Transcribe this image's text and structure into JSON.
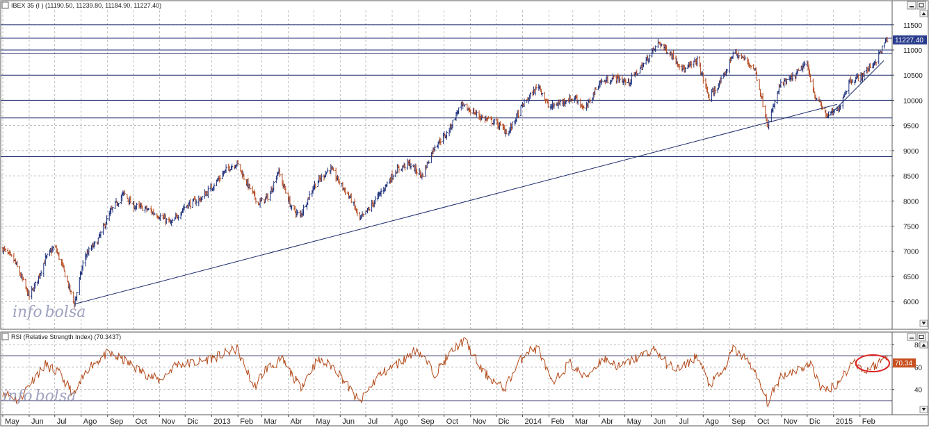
{
  "price_panel": {
    "title": "IBEX 35 (I ) (11190.50, 11239.80, 11184.90, 11227.40)",
    "last_label": "11227.40",
    "colors": {
      "up": "#1c2f7a",
      "down": "#b5491f",
      "line": "#1a2a6c",
      "grid": "#a0a0a0",
      "last_bg": "#2a3c8c"
    }
  },
  "rsi_panel": {
    "title": "RSI (Relative Strength Index) (70.3437)",
    "last_label": "70.34",
    "colors": {
      "line": "#b34a1a",
      "last_bg": "#c85020",
      "circle": "#dd2222"
    }
  },
  "watermark": {
    "part1": "info",
    "part2": "bolsa"
  },
  "chart_data": [
    {
      "type": "ohlc",
      "title": "IBEX 35 (I ) (11190.50, 11239.80, 11184.90, 11227.40)",
      "y_ticks": [
        6000,
        6500,
        7000,
        7500,
        8000,
        8500,
        9000,
        9500,
        10000,
        10500,
        11000,
        11500
      ],
      "y_range": [
        5450,
        11980
      ],
      "x_tick_labels": [
        "May",
        "Jun",
        "Jul",
        "Ago",
        "Sep",
        "Oct",
        "Nov",
        "Dic",
        "2013",
        "Feb",
        "Mar",
        "Abr",
        "May",
        "Jun",
        "Jul",
        "Ago",
        "Sep",
        "Oct",
        "Nov",
        "Dic",
        "2014",
        "Feb",
        "Mar",
        "Abr",
        "May",
        "Jun",
        "Jul",
        "Ago",
        "Sep",
        "Oct",
        "Nov",
        "Dic",
        "2015",
        "Feb"
      ],
      "x_range": [
        "2012-05-01",
        "2015-03-05"
      ],
      "last": {
        "open": 11190.5,
        "high": 11239.8,
        "low": 11184.9,
        "close": 11227.4
      },
      "horizontal_levels": [
        11500,
        11235,
        11000,
        10930,
        10500,
        10000,
        9650,
        8880
      ],
      "trendlines": [
        {
          "from": [
            "2012-07-24",
            5950
          ],
          "to": [
            "2015-01-05",
            9920
          ]
        },
        {
          "from": [
            "2014-12-24",
            9650
          ],
          "to": [
            "2015-03-01",
            10790
          ]
        }
      ],
      "closes": [
        [
          "2012-05-01",
          7050
        ],
        [
          "2012-05-15",
          6800
        ],
        [
          "2012-06-01",
          6100
        ],
        [
          "2012-06-10",
          6400
        ],
        [
          "2012-06-20",
          6850
        ],
        [
          "2012-07-01",
          7100
        ],
        [
          "2012-07-10",
          6700
        ],
        [
          "2012-07-24",
          5950
        ],
        [
          "2012-08-05",
          6900
        ],
        [
          "2012-08-20",
          7200
        ],
        [
          "2012-09-05",
          7800
        ],
        [
          "2012-09-20",
          8150
        ],
        [
          "2012-10-01",
          7900
        ],
        [
          "2012-10-15",
          7850
        ],
        [
          "2012-11-01",
          7700
        ],
        [
          "2012-11-15",
          7550
        ],
        [
          "2012-12-01",
          7900
        ],
        [
          "2012-12-20",
          8050
        ],
        [
          "2013-01-05",
          8350
        ],
        [
          "2013-01-20",
          8650
        ],
        [
          "2013-01-31",
          8750
        ],
        [
          "2013-02-10",
          8400
        ],
        [
          "2013-02-25",
          7950
        ],
        [
          "2013-03-10",
          8100
        ],
        [
          "2013-03-20",
          8600
        ],
        [
          "2013-04-05",
          7850
        ],
        [
          "2013-04-15",
          7700
        ],
        [
          "2013-05-01",
          8300
        ],
        [
          "2013-05-20",
          8650
        ],
        [
          "2013-06-01",
          8350
        ],
        [
          "2013-06-15",
          8000
        ],
        [
          "2013-06-24",
          7620
        ],
        [
          "2013-07-05",
          7850
        ],
        [
          "2013-07-20",
          8200
        ],
        [
          "2013-08-05",
          8600
        ],
        [
          "2013-08-20",
          8750
        ],
        [
          "2013-09-05",
          8500
        ],
        [
          "2013-09-20",
          9100
        ],
        [
          "2013-10-05",
          9350
        ],
        [
          "2013-10-20",
          9900
        ],
        [
          "2013-11-01",
          9800
        ],
        [
          "2013-11-15",
          9650
        ],
        [
          "2013-12-01",
          9550
        ],
        [
          "2013-12-15",
          9350
        ],
        [
          "2014-01-01",
          9900
        ],
        [
          "2014-01-20",
          10300
        ],
        [
          "2014-02-01",
          9850
        ],
        [
          "2014-02-20",
          10000
        ],
        [
          "2014-03-05",
          10050
        ],
        [
          "2014-03-15",
          9800
        ],
        [
          "2014-04-01",
          10350
        ],
        [
          "2014-04-20",
          10450
        ],
        [
          "2014-05-05",
          10350
        ],
        [
          "2014-05-20",
          10650
        ],
        [
          "2014-06-10",
          11150
        ],
        [
          "2014-06-25",
          10900
        ],
        [
          "2014-07-10",
          10600
        ],
        [
          "2014-07-25",
          10800
        ],
        [
          "2014-08-08",
          10050
        ],
        [
          "2014-08-25",
          10450
        ],
        [
          "2014-09-05",
          10950
        ],
        [
          "2014-09-20",
          10800
        ],
        [
          "2014-10-01",
          10600
        ],
        [
          "2014-10-16",
          9500
        ],
        [
          "2014-10-30",
          10300
        ],
        [
          "2014-11-15",
          10450
        ],
        [
          "2014-11-30",
          10750
        ],
        [
          "2014-12-10",
          10100
        ],
        [
          "2014-12-24",
          9700
        ],
        [
          "2015-01-06",
          9800
        ],
        [
          "2015-01-20",
          10400
        ],
        [
          "2015-02-01",
          10450
        ],
        [
          "2015-02-20",
          10800
        ],
        [
          "2015-03-05",
          11227
        ]
      ]
    },
    {
      "type": "line",
      "title": "RSI (Relative Strength Index) (70.3437)",
      "y_ticks": [
        40,
        60,
        80
      ],
      "y_range": [
        17.6,
        91
      ],
      "reference_levels": [
        70,
        30
      ],
      "last": 70.34,
      "x": [
        "2012-05-01",
        "2012-05-20",
        "2012-06-01",
        "2012-06-20",
        "2012-07-05",
        "2012-07-24",
        "2012-08-10",
        "2012-09-01",
        "2012-09-20",
        "2012-10-10",
        "2012-11-01",
        "2012-11-20",
        "2012-12-15",
        "2013-01-10",
        "2013-01-31",
        "2013-02-20",
        "2013-03-05",
        "2013-03-25",
        "2013-04-15",
        "2013-05-05",
        "2013-05-25",
        "2013-06-24",
        "2013-07-15",
        "2013-08-10",
        "2013-08-30",
        "2013-09-20",
        "2013-10-10",
        "2013-10-25",
        "2013-11-15",
        "2013-12-10",
        "2014-01-05",
        "2014-01-20",
        "2014-02-05",
        "2014-02-25",
        "2014-03-15",
        "2014-04-05",
        "2014-04-25",
        "2014-05-15",
        "2014-06-05",
        "2014-06-20",
        "2014-07-05",
        "2014-07-25",
        "2014-08-08",
        "2014-08-25",
        "2014-09-05",
        "2014-09-25",
        "2014-10-16",
        "2014-10-31",
        "2014-11-20",
        "2014-12-05",
        "2014-12-20",
        "2015-01-06",
        "2015-01-25",
        "2015-02-05",
        "2015-02-20",
        "2015-03-05"
      ],
      "values": [
        38,
        30,
        45,
        62,
        55,
        35,
        60,
        72,
        66,
        56,
        48,
        62,
        64,
        70,
        76,
        42,
        58,
        66,
        42,
        66,
        60,
        28,
        52,
        64,
        76,
        54,
        74,
        84,
        56,
        40,
        74,
        76,
        44,
        64,
        50,
        68,
        60,
        68,
        76,
        62,
        58,
        70,
        44,
        56,
        76,
        64,
        28,
        52,
        58,
        62,
        38,
        46,
        66,
        56,
        62,
        70
      ]
    }
  ]
}
